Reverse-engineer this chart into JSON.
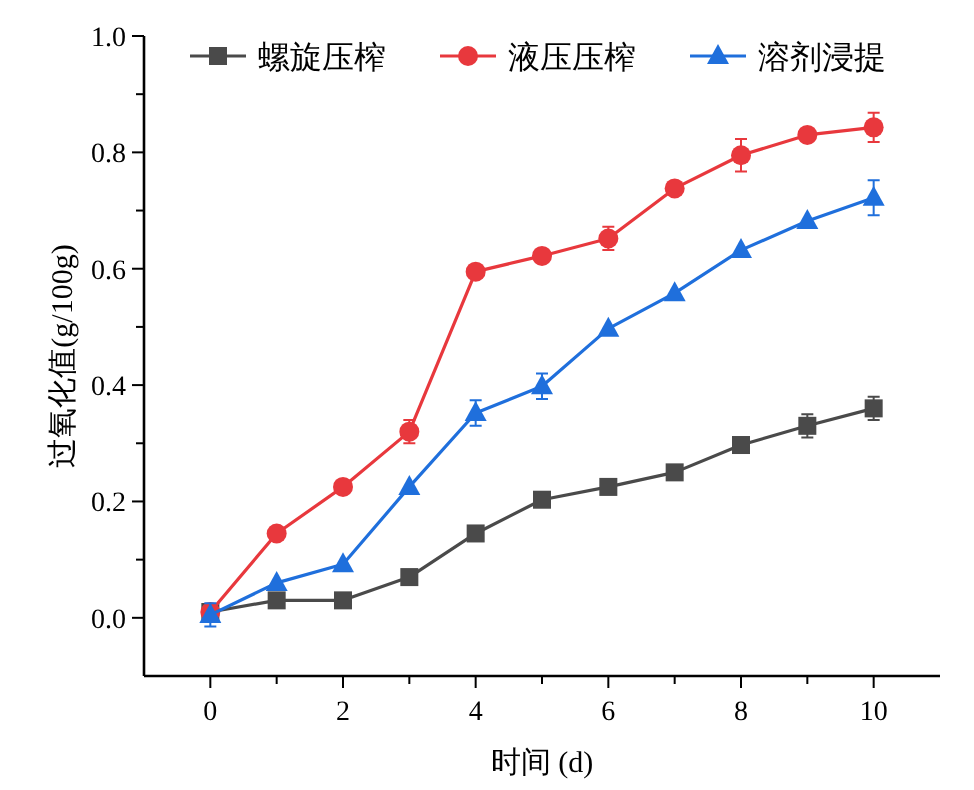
{
  "chart_data": {
    "type": "line",
    "xlabel": "时间 (d)",
    "ylabel": "过氧化值(g/100g)",
    "x": [
      0,
      1,
      2,
      3,
      4,
      5,
      6,
      7,
      8,
      9,
      10
    ],
    "xlim": [
      -1,
      11
    ],
    "xticks": [
      0,
      {
        "value": 1,
        "label": null
      },
      2,
      {
        "value": 3,
        "label": null
      },
      4,
      {
        "value": 5,
        "label": null
      },
      6,
      {
        "value": 7,
        "label": null
      },
      8,
      {
        "value": 9,
        "label": null
      },
      10
    ],
    "ylim": [
      -0.1,
      1.0
    ],
    "yticks": [
      {
        "value": 0,
        "label": "0.0"
      },
      {
        "value": 0.1,
        "label": null
      },
      0.2,
      {
        "value": 0.3,
        "label": null
      },
      0.4,
      {
        "value": 0.5,
        "label": null
      },
      0.6,
      {
        "value": 0.7,
        "label": null
      },
      0.8,
      {
        "value": 0.9,
        "label": null
      },
      {
        "value": 1,
        "label": "1.0"
      }
    ],
    "legend": "top",
    "grid": false,
    "series": [
      {
        "name": "螺旋压榨",
        "color": "#4a4a4a",
        "marker": "square",
        "values": [
          0.01,
          0.03,
          0.03,
          0.07,
          0.145,
          0.203,
          0.225,
          0.25,
          0.297,
          0.33,
          0.36
        ],
        "errors": [
          null,
          null,
          null,
          null,
          null,
          null,
          null,
          null,
          null,
          0.02,
          0.02
        ]
      },
      {
        "name": "液压压榨",
        "color": "#e8383d",
        "marker": "circle",
        "values": [
          0.01,
          0.145,
          0.225,
          0.32,
          0.595,
          0.622,
          0.652,
          0.738,
          0.795,
          0.83,
          0.843
        ],
        "errors": [
          null,
          null,
          null,
          0.02,
          null,
          null,
          0.02,
          null,
          0.028,
          null,
          0.025
        ]
      },
      {
        "name": "溶剂浸提",
        "color": "#1f6fdc",
        "marker": "triangle",
        "values": [
          0.005,
          0.06,
          0.092,
          0.225,
          0.352,
          0.398,
          0.497,
          0.558,
          0.632,
          0.682,
          0.722
        ],
        "errors": [
          0.02,
          null,
          null,
          null,
          0.022,
          0.022,
          null,
          null,
          null,
          null,
          0.03
        ]
      }
    ]
  }
}
